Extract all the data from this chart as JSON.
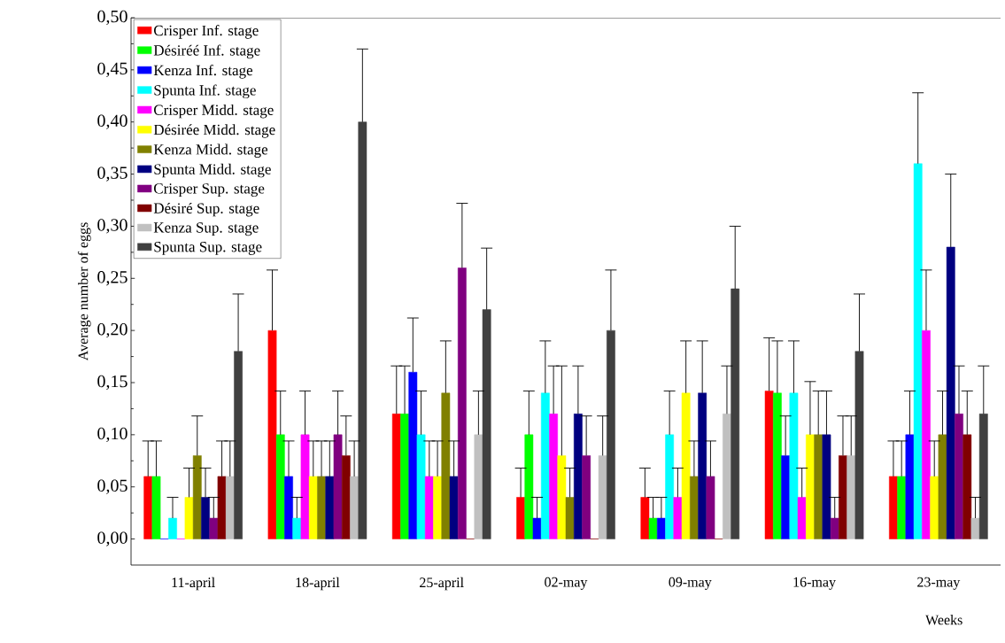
{
  "chart_data": {
    "type": "bar",
    "xlabel": "Weeks",
    "ylabel": "Average number of eggs",
    "categories": [
      "11-april",
      "18-april",
      "25-april",
      "02-may",
      "09-may",
      "16-may",
      "23-may"
    ],
    "ylim": [
      -0.025,
      0.5
    ],
    "yticks": [
      {
        "value": 0,
        "label": "0,00"
      },
      {
        "value": 0.05,
        "label": "0,05"
      },
      {
        "value": 0.1,
        "label": "0,10"
      },
      {
        "value": 0.15,
        "label": "0,15"
      },
      {
        "value": 0.2,
        "label": "0,20"
      },
      {
        "value": 0.25,
        "label": "0,25"
      },
      {
        "value": 0.3,
        "label": "0,30"
      },
      {
        "value": 0.35,
        "label": "0,35"
      },
      {
        "value": 0.4,
        "label": "0,40"
      },
      {
        "value": 0.45,
        "label": "0,45"
      },
      {
        "value": 0.5,
        "label": "0,50"
      }
    ],
    "legend": "top left",
    "series": [
      {
        "name": "Crisper Inf. stage",
        "color": "#ff0000",
        "values": [
          0.06,
          0.2,
          0.12,
          0.04,
          0.04,
          0.142,
          0.06
        ],
        "errors": [
          [
            0.06,
            0.094
          ],
          [
            0.2,
            0.258
          ],
          [
            0.12,
            0.166
          ],
          [
            0.04,
            0.068
          ],
          [
            0.04,
            0.068
          ],
          [
            0.142,
            0.193
          ],
          [
            0.06,
            0.094
          ]
        ]
      },
      {
        "name": "Désiréé Inf. stage",
        "color": "#00ff00",
        "values": [
          0.06,
          0.1,
          0.12,
          0.1,
          0.02,
          0.14,
          0.06
        ],
        "errors": [
          [
            0.06,
            0.094
          ],
          [
            0.1,
            0.142
          ],
          [
            0.12,
            0.166
          ],
          [
            0.1,
            0.142
          ],
          [
            0.02,
            0.04
          ],
          [
            0.14,
            0.19
          ],
          [
            0.06,
            0.094
          ]
        ]
      },
      {
        "name": "Kenza Inf. stage",
        "color": "#0000ff",
        "values": [
          0.0,
          0.06,
          0.16,
          0.02,
          0.02,
          0.08,
          0.1
        ],
        "errors": [
          null,
          [
            0.06,
            0.094
          ],
          [
            0.16,
            0.212
          ],
          [
            0.02,
            0.04
          ],
          [
            0.02,
            0.04
          ],
          [
            0.08,
            0.118
          ],
          [
            0.1,
            0.142
          ]
        ]
      },
      {
        "name": "Spunta Inf. stage",
        "color": "#00ffff",
        "values": [
          0.02,
          0.02,
          0.1,
          0.14,
          0.1,
          0.14,
          0.36
        ],
        "errors": [
          [
            0.02,
            0.04
          ],
          [
            0.02,
            0.04
          ],
          [
            0.1,
            0.142
          ],
          [
            0.14,
            0.19
          ],
          [
            0.1,
            0.142
          ],
          [
            0.14,
            0.19
          ],
          [
            0.36,
            0.428
          ]
        ]
      },
      {
        "name": "Crisper Midd. stage",
        "color": "#ff00ff",
        "values": [
          0.0,
          0.1,
          0.06,
          0.12,
          0.04,
          0.04,
          0.2
        ],
        "errors": [
          null,
          [
            0.1,
            0.142
          ],
          [
            0.06,
            0.094
          ],
          [
            0.12,
            0.166
          ],
          [
            0.04,
            0.068
          ],
          [
            0.04,
            0.068
          ],
          [
            0.2,
            0.258
          ]
        ]
      },
      {
        "name": "Désirée Midd. stage",
        "color": "#ffff00",
        "values": [
          0.04,
          0.06,
          0.06,
          0.08,
          0.14,
          0.1,
          0.06
        ],
        "errors": [
          [
            0.04,
            0.068
          ],
          [
            0.06,
            0.094
          ],
          [
            0.06,
            0.094
          ],
          [
            0.08,
            0.166
          ],
          [
            0.14,
            0.19
          ],
          [
            0.1,
            0.151
          ],
          [
            0.06,
            0.094
          ]
        ]
      },
      {
        "name": "Kenza Midd. stage",
        "color": "#808000",
        "values": [
          0.08,
          0.06,
          0.14,
          0.04,
          0.06,
          0.1,
          0.1
        ],
        "errors": [
          [
            0.08,
            0.118
          ],
          [
            0.06,
            0.094
          ],
          [
            0.14,
            0.19
          ],
          [
            0.04,
            0.068
          ],
          [
            0.06,
            0.094
          ],
          [
            0.1,
            0.142
          ],
          [
            0.1,
            0.142
          ]
        ]
      },
      {
        "name": "Spunta Midd. stage",
        "color": "#000080",
        "values": [
          0.04,
          0.06,
          0.06,
          0.12,
          0.14,
          0.1,
          0.28
        ],
        "errors": [
          [
            0.04,
            0.068
          ],
          [
            0.06,
            0.094
          ],
          [
            0.06,
            0.094
          ],
          [
            0.12,
            0.166
          ],
          [
            0.14,
            0.19
          ],
          [
            0.1,
            0.142
          ],
          [
            0.28,
            0.35
          ]
        ]
      },
      {
        "name": "Crisper Sup. stage",
        "color": "#800080",
        "values": [
          0.02,
          0.1,
          0.26,
          0.08,
          0.06,
          0.02,
          0.12
        ],
        "errors": [
          [
            0.02,
            0.04
          ],
          [
            0.1,
            0.142
          ],
          [
            0.26,
            0.322
          ],
          [
            0.08,
            0.118
          ],
          [
            0.06,
            0.094
          ],
          [
            0.02,
            0.04
          ],
          [
            0.12,
            0.166
          ]
        ]
      },
      {
        "name": "Désiré Sup. stage",
        "color": "#800000",
        "values": [
          0.06,
          0.08,
          0.0,
          0.0,
          0.0,
          0.08,
          0.1
        ],
        "errors": [
          [
            0.06,
            0.094
          ],
          [
            0.08,
            0.118
          ],
          null,
          null,
          null,
          [
            0.08,
            0.118
          ],
          [
            0.1,
            0.142
          ]
        ]
      },
      {
        "name": "Kenza Sup. stage",
        "color": "#c0c0c0",
        "values": [
          0.06,
          0.06,
          0.1,
          0.08,
          0.12,
          0.08,
          0.02
        ],
        "errors": [
          [
            0.06,
            0.094
          ],
          [
            0.06,
            0.094
          ],
          [
            0.1,
            0.142
          ],
          [
            0.08,
            0.118
          ],
          [
            0.12,
            0.166
          ],
          [
            0.08,
            0.118
          ],
          [
            0.02,
            0.04
          ]
        ]
      },
      {
        "name": "Spunta Sup. stage",
        "color": "#404040",
        "values": [
          0.18,
          0.4,
          0.22,
          0.2,
          0.24,
          0.18,
          0.12
        ],
        "errors": [
          [
            0.18,
            0.235
          ],
          [
            0.4,
            0.47
          ],
          [
            0.22,
            0.279
          ],
          [
            0.2,
            0.258
          ],
          [
            0.24,
            0.3
          ],
          [
            0.18,
            0.235
          ],
          [
            0.12,
            0.166
          ]
        ]
      }
    ]
  }
}
